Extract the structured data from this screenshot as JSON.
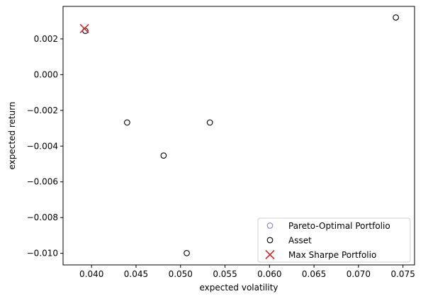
{
  "chart_data": {
    "type": "scatter",
    "title": "",
    "xlabel": "expected volatility",
    "ylabel": "expected return",
    "xlim": [
      0.0368,
      0.0763
    ],
    "ylim": [
      -0.01065,
      0.00382
    ],
    "grid": false,
    "legend_position": "lower-right",
    "x_ticks": [
      0.04,
      0.045,
      0.05,
      0.055,
      0.06,
      0.065,
      0.07,
      0.075
    ],
    "x_tick_labels": [
      "0.040",
      "0.045",
      "0.050",
      "0.055",
      "0.060",
      "0.065",
      "0.070",
      "0.075"
    ],
    "y_ticks": [
      0.002,
      0.0,
      -0.002,
      -0.004,
      -0.006,
      -0.008,
      -0.01
    ],
    "y_tick_labels": [
      "0.002",
      "0.000",
      "−0.002",
      "−0.004",
      "−0.006",
      "−0.008",
      "−0.010"
    ],
    "series": [
      {
        "name": "Pareto-Optimal Portfolio",
        "marker": "circle-open",
        "color": "#8c7fe0",
        "x": [],
        "y": []
      },
      {
        "name": "Asset",
        "marker": "circle-open",
        "color": "#000000",
        "x": [
          0.0393,
          0.044,
          0.0481,
          0.0507,
          0.0533,
          0.0742
        ],
        "y": [
          0.00245,
          -0.00268,
          -0.00453,
          -0.00999,
          -0.00268,
          0.0032
        ]
      },
      {
        "name": "Max Sharpe Portfolio",
        "marker": "x",
        "color": "#d62728",
        "x": [
          0.0392
        ],
        "y": [
          0.00258
        ]
      }
    ]
  }
}
